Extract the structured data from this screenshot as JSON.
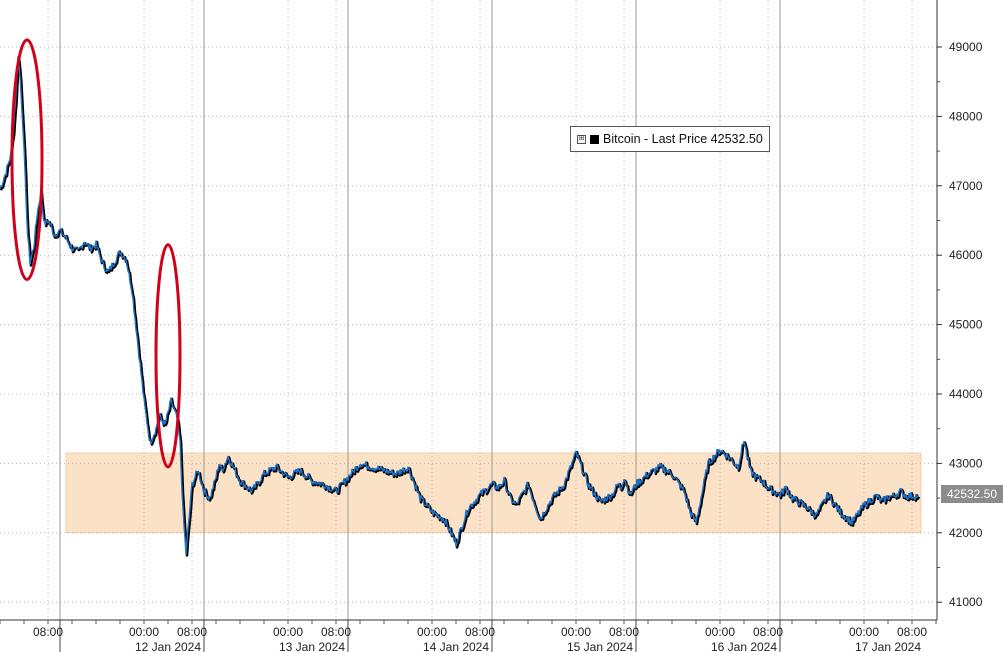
{
  "colors": {
    "line": "#1f73c9",
    "line_shadow": "#000000",
    "range_band": "#fbe1c5",
    "annotation": "#d0021b",
    "grid": "#b8b8b8",
    "last_tag": "#8c8c8c"
  },
  "legend": {
    "toggle_icon": "⊞",
    "label": "Bitcoin - Last Price 42532.50"
  },
  "last_price_tag": "42532.50",
  "chart_data": {
    "type": "line",
    "title": "",
    "xlabel": "",
    "ylabel": "",
    "y_axis_side": "right",
    "ylim": [
      40800,
      49500
    ],
    "yticks": [
      41000,
      42000,
      43000,
      44000,
      45000,
      46000,
      47000,
      48000,
      49000
    ],
    "xlim_hours": [
      0,
      156
    ],
    "time_labels": [
      {
        "hour": 8,
        "text": "08:00"
      },
      {
        "hour": 24,
        "text": "00:00"
      },
      {
        "hour": 32,
        "text": "08:00"
      },
      {
        "hour": 48,
        "text": "00:00"
      },
      {
        "hour": 56,
        "text": "08:00"
      },
      {
        "hour": 72,
        "text": "00:00"
      },
      {
        "hour": 80,
        "text": "08:00"
      },
      {
        "hour": 96,
        "text": "00:00"
      },
      {
        "hour": 104,
        "text": "08:00"
      },
      {
        "hour": 120,
        "text": "00:00"
      },
      {
        "hour": 128,
        "text": "08:00"
      },
      {
        "hour": 144,
        "text": "00:00"
      },
      {
        "hour": 152,
        "text": "08:00"
      }
    ],
    "date_labels": [
      {
        "hour": 28,
        "text": "12 Jan 2024"
      },
      {
        "hour": 52,
        "text": "13 Jan 2024"
      },
      {
        "hour": 76,
        "text": "14 Jan 2024"
      },
      {
        "hour": 100,
        "text": "15 Jan 2024"
      },
      {
        "hour": 124,
        "text": "16 Jan 2024"
      },
      {
        "hour": 148,
        "text": "17 Jan 2024"
      }
    ],
    "day_boundaries": [
      10,
      34,
      58,
      82,
      106,
      130
    ],
    "series": [
      {
        "x": [
          0,
          1,
          1.8,
          2.2,
          2.6,
          3.0,
          3.4,
          3.8,
          4.2,
          4.6,
          5.0,
          5.6,
          6.2,
          6.8,
          7.4,
          8.0,
          8.6,
          9.0,
          10,
          11,
          12,
          13,
          14,
          15,
          16,
          17,
          18,
          19,
          20,
          21,
          22,
          23,
          24,
          25,
          26,
          26.5,
          27.5,
          28.5,
          29.5,
          30,
          30.5,
          31,
          32,
          33,
          34,
          35,
          36,
          36.5,
          37,
          38,
          40,
          42,
          44,
          46,
          48,
          50,
          52,
          54,
          56,
          58,
          60,
          62,
          64,
          66,
          68,
          70,
          72,
          74,
          76,
          78,
          80,
          82,
          83,
          84,
          85,
          86,
          88,
          90,
          92,
          94,
          96,
          98,
          100,
          101,
          102,
          103,
          103.5,
          104,
          105,
          106,
          108,
          110,
          112,
          114,
          115,
          116,
          118,
          120,
          122,
          123,
          124,
          124.5,
          125,
          126,
          127,
          128,
          129,
          130,
          131,
          132,
          134,
          136,
          138,
          140,
          142,
          144,
          146,
          147,
          148,
          149,
          150,
          151,
          152,
          153
        ],
        "values": [
          46950,
          47200,
          47450,
          47800,
          48250,
          48900,
          48500,
          47900,
          47100,
          46300,
          45900,
          46100,
          46600,
          46900,
          46450,
          46500,
          46400,
          46300,
          46350,
          46250,
          46100,
          46050,
          46200,
          46100,
          46150,
          45900,
          45750,
          45900,
          46050,
          45950,
          45500,
          44700,
          43900,
          43300,
          43500,
          43700,
          43550,
          43900,
          43650,
          43300,
          42300,
          41700,
          42700,
          42900,
          42600,
          42500,
          42800,
          43000,
          42900,
          43100,
          42750,
          42600,
          42850,
          42950,
          42800,
          42900,
          42750,
          42700,
          42600,
          42800,
          43000,
          42950,
          42900,
          42850,
          42950,
          42500,
          42300,
          42200,
          41850,
          42350,
          42550,
          42700,
          42650,
          42750,
          42500,
          42400,
          42700,
          42200,
          42500,
          42700,
          43150,
          42700,
          42450,
          42500,
          42550,
          42700,
          42650,
          42800,
          42550,
          42700,
          42850,
          42950,
          42850,
          42600,
          42300,
          42150,
          43000,
          43200,
          43050,
          42950,
          43350,
          43100,
          42900,
          42800,
          42750,
          42650,
          42600,
          42550,
          42650,
          42500,
          42400,
          42250,
          42550,
          42300,
          42150,
          42400,
          42532.5,
          42450,
          42520,
          42532.5,
          42600,
          42532.5,
          42532.5,
          42532.5
        ],
        "note": "approximate path"
      }
    ],
    "shaded_range": {
      "from_hour": 11,
      "to_hour": 153.5,
      "low": 42000,
      "high": 43150
    },
    "annotations": [
      {
        "type": "ellipse",
        "from_hour": 2,
        "to_hour": 7,
        "low": 45650,
        "high": 49100
      },
      {
        "type": "ellipse",
        "from_hour": 26,
        "to_hour": 30,
        "low": 42950,
        "high": 46150
      }
    ],
    "grid": true,
    "legend_position": "top-right"
  }
}
